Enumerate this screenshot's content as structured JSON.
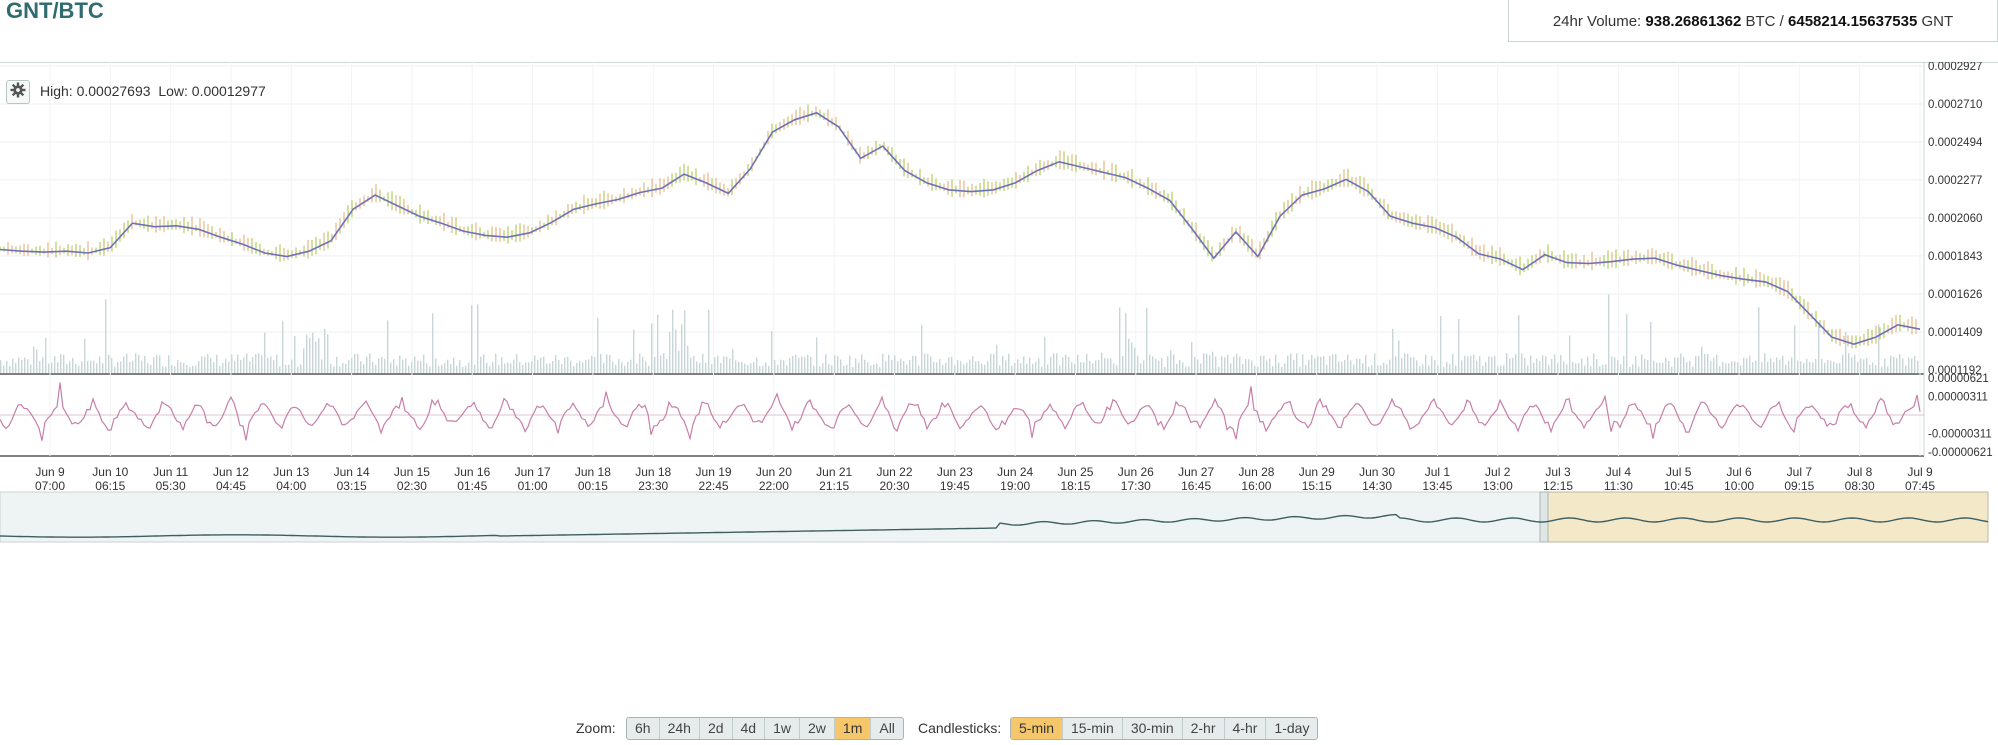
{
  "header": {
    "pair": "GNT/BTC",
    "volume_prefix": "24hr Volume:",
    "volume_btc": "938.26861362",
    "volume_btc_unit": "BTC /",
    "volume_gnt": "6458214.15637535",
    "volume_gnt_unit": "GNT"
  },
  "stats": {
    "high_label": "High:",
    "high": "0.00027693",
    "low_label": "Low:",
    "low": "0.00012977"
  },
  "controls": {
    "zoom_label": "Zoom:",
    "zoom_options": [
      "6h",
      "24h",
      "2d",
      "4d",
      "1w",
      "2w",
      "1m",
      "All"
    ],
    "zoom_active": "1m",
    "candles_label": "Candlesticks:",
    "candle_options": [
      "5-min",
      "15-min",
      "30-min",
      "2-hr",
      "4-hr",
      "1-day"
    ],
    "candles_active": "5-min"
  },
  "colors": {
    "price_line": "#6c72b8",
    "candle_up": "#a9c23b",
    "candle_down": "#e3a86a",
    "volume": "#c8d6d8",
    "macd_line": "#c77fa8",
    "navigator_line": "#3f5e5e",
    "navigator_bg": "#eef4f4",
    "navigator_selection": "#f3e8c8",
    "accent": "#2f6b6f"
  },
  "chart_data": {
    "type": "line",
    "price_axis_ticks": [
      "0.0002927",
      "0.0002710",
      "0.0002494",
      "0.0002277",
      "0.0002060",
      "0.0001843",
      "0.0001626",
      "0.0001409",
      "0.0001192"
    ],
    "ylim": [
      0.0001192,
      0.0002927
    ],
    "indicator_axis_ticks": [
      "0.00000621",
      "0.00000311",
      "-0.00000311",
      "-0.00000621"
    ],
    "indicator_ylim": [
      -6.21e-06,
      6.21e-06
    ],
    "x_tick_labels": [
      {
        "day": "Jun 9",
        "time": "07:00"
      },
      {
        "day": "Jun 10",
        "time": "06:15"
      },
      {
        "day": "Jun 11",
        "time": "05:30"
      },
      {
        "day": "Jun 12",
        "time": "04:45"
      },
      {
        "day": "Jun 13",
        "time": "04:00"
      },
      {
        "day": "Jun 14",
        "time": "03:15"
      },
      {
        "day": "Jun 15",
        "time": "02:30"
      },
      {
        "day": "Jun 16",
        "time": "01:45"
      },
      {
        "day": "Jun 17",
        "time": "01:00"
      },
      {
        "day": "Jun 18",
        "time": "00:15"
      },
      {
        "day": "Jun 18",
        "time": "23:30"
      },
      {
        "day": "Jun 19",
        "time": "22:45"
      },
      {
        "day": "Jun 20",
        "time": "22:00"
      },
      {
        "day": "Jun 21",
        "time": "21:15"
      },
      {
        "day": "Jun 22",
        "time": "20:30"
      },
      {
        "day": "Jun 23",
        "time": "19:45"
      },
      {
        "day": "Jun 24",
        "time": "19:00"
      },
      {
        "day": "Jun 25",
        "time": "18:15"
      },
      {
        "day": "Jun 26",
        "time": "17:30"
      },
      {
        "day": "Jun 27",
        "time": "16:45"
      },
      {
        "day": "Jun 28",
        "time": "16:00"
      },
      {
        "day": "Jun 29",
        "time": "15:15"
      },
      {
        "day": "Jun 30",
        "time": "14:30"
      },
      {
        "day": "Jul 1",
        "time": "13:45"
      },
      {
        "day": "Jul 2",
        "time": "13:00"
      },
      {
        "day": "Jul 3",
        "time": "12:15"
      },
      {
        "day": "Jul 4",
        "time": "11:30"
      },
      {
        "day": "Jul 5",
        "time": "10:45"
      },
      {
        "day": "Jul 6",
        "time": "10:00"
      },
      {
        "day": "Jul 7",
        "time": "09:15"
      },
      {
        "day": "Jul 8",
        "time": "08:30"
      },
      {
        "day": "Jul 9",
        "time": "07:45"
      }
    ],
    "series": [
      {
        "values": [
          0.000188,
          0.000187,
          0.0001865,
          0.000187,
          0.000186,
          0.000189,
          0.000203,
          0.000201,
          0.0002015,
          0.0001995,
          0.000195,
          0.000191,
          0.000186,
          0.000184,
          0.000187,
          0.000193,
          0.000211,
          0.000219,
          0.000213,
          0.000207,
          0.000203,
          0.0001985,
          0.000196,
          0.000195,
          0.0001975,
          0.0002035,
          0.000211,
          0.000214,
          0.0002165,
          0.0002205,
          0.000223,
          0.000231,
          0.000226,
          0.00022,
          0.000234,
          0.000255,
          0.000262,
          0.000266,
          0.000258,
          0.00024,
          0.000247,
          0.000233,
          0.000226,
          0.000222,
          0.000221,
          0.000222,
          0.000226,
          0.000233,
          0.000238,
          0.000235,
          0.000232,
          0.000229,
          0.000223,
          0.000216,
          0.0002,
          0.000183,
          0.000198,
          0.000184,
          0.000207,
          0.000219,
          0.0002225,
          0.000228,
          0.000221,
          0.000207,
          0.000203,
          0.0002005,
          0.000195,
          0.0001855,
          0.0001825,
          0.0001765,
          0.000185,
          0.0001805,
          0.00018,
          0.000181,
          0.0001825,
          0.000183,
          0.000179,
          0.000176,
          0.000173,
          0.000171,
          0.0001695,
          0.000164,
          0.000151,
          0.000138,
          0.000134,
          0.000138,
          0.000145,
          0.0001425
        ]
      }
    ],
    "volume_note": "thin volume bars along the bottom of the price pane",
    "indicator": "oscillator around zero (MACD style)",
    "navigator": "overview line with selected range Jul 3 – Jul 9"
  }
}
